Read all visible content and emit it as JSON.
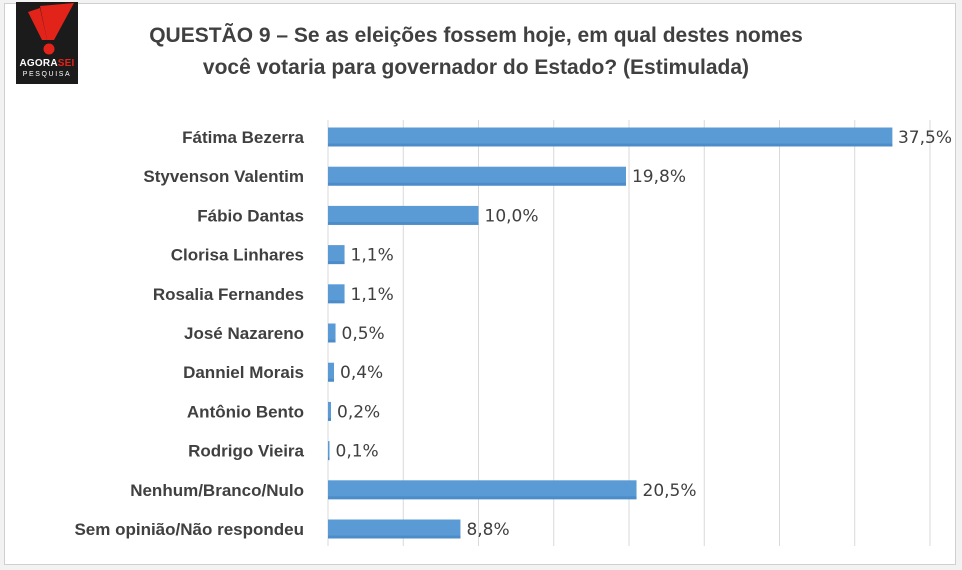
{
  "logo": {
    "brand_main": "AGORA",
    "brand_accent": "SEI",
    "sub": "PESQUISA"
  },
  "colors": {
    "bar": "#5b9bd5",
    "bar_dark": "#3f7fc0",
    "grid": "#d9d9d9",
    "logo_red": "#e2231a",
    "logo_bg": "#1b1b1b"
  },
  "chart_data": {
    "type": "bar",
    "orientation": "horizontal",
    "title_lines": [
      "QUESTÃO 9 – Se as eleições fossem hoje, em qual destes nomes",
      "você votaria para governador do Estado? (Estimulada)"
    ],
    "categories": [
      "Fátima Bezerra",
      "Styvenson Valentim",
      "Fábio Dantas",
      "Clorisa Linhares",
      "Rosalia Fernandes",
      "José Nazareno",
      "Danniel Morais",
      "Antônio Bento",
      "Rodrigo Vieira",
      "Nenhum/Branco/Nulo",
      "Sem opinião/Não respondeu"
    ],
    "values": [
      37.5,
      19.8,
      10.0,
      1.1,
      1.1,
      0.5,
      0.4,
      0.2,
      0.1,
      20.5,
      8.8
    ],
    "value_labels": [
      "37,5%",
      "19,8%",
      "10,0%",
      "1,1%",
      "1,1%",
      "0,5%",
      "0,4%",
      "0,2%",
      "0,1%",
      "20,5%",
      "8,8%"
    ],
    "xlim": [
      0,
      40
    ],
    "grid": true,
    "legend": "none"
  }
}
